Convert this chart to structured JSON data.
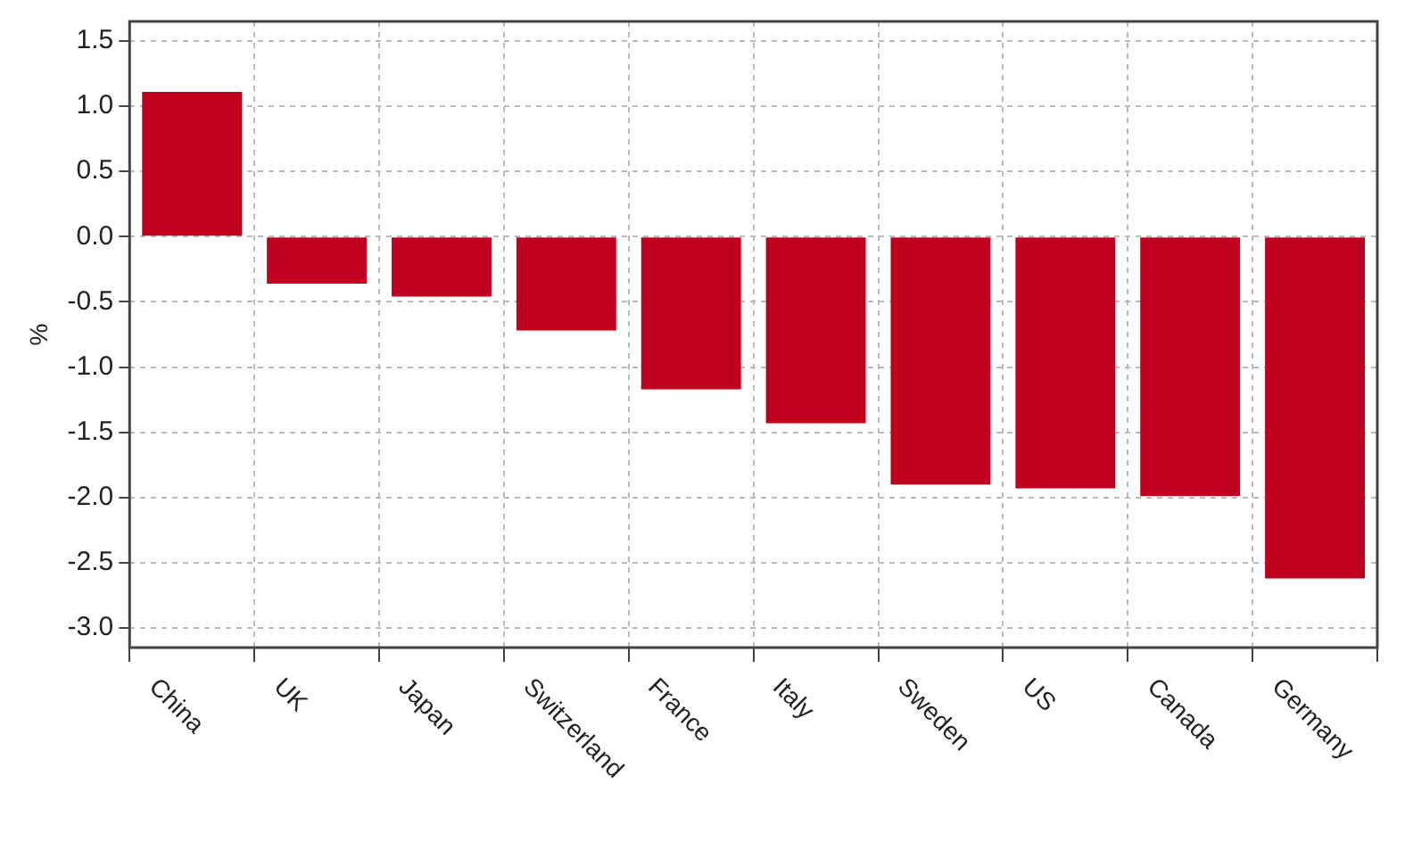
{
  "chart_data": {
    "type": "bar",
    "ylabel": "%",
    "categories": [
      "China",
      "UK",
      "Japan",
      "Switzerland",
      "France",
      "Italy",
      "Sweden",
      "US",
      "Canada",
      "Germany"
    ],
    "values": [
      1.11,
      -0.36,
      -0.46,
      -0.72,
      -1.17,
      -1.43,
      -1.9,
      -1.93,
      -1.99,
      -2.62
    ],
    "color": "#c0001f",
    "ylim": [
      -3.15,
      1.65
    ],
    "yticks": [
      {
        "value": -3,
        "label": "-3.0"
      },
      {
        "value": -2.5,
        "label": "-2.5"
      },
      {
        "value": -2,
        "label": "-2.0"
      },
      {
        "value": -1.5,
        "label": "-1.5"
      },
      {
        "value": -1,
        "label": "-1.0"
      },
      {
        "value": -0.5,
        "label": "-0.5"
      },
      {
        "value": 0,
        "label": "0.0"
      },
      {
        "value": 0.5,
        "label": "0.5"
      },
      {
        "value": 1,
        "label": "1.0"
      },
      {
        "value": 1.5,
        "label": "1.5"
      }
    ],
    "grid": true,
    "legend": false
  }
}
